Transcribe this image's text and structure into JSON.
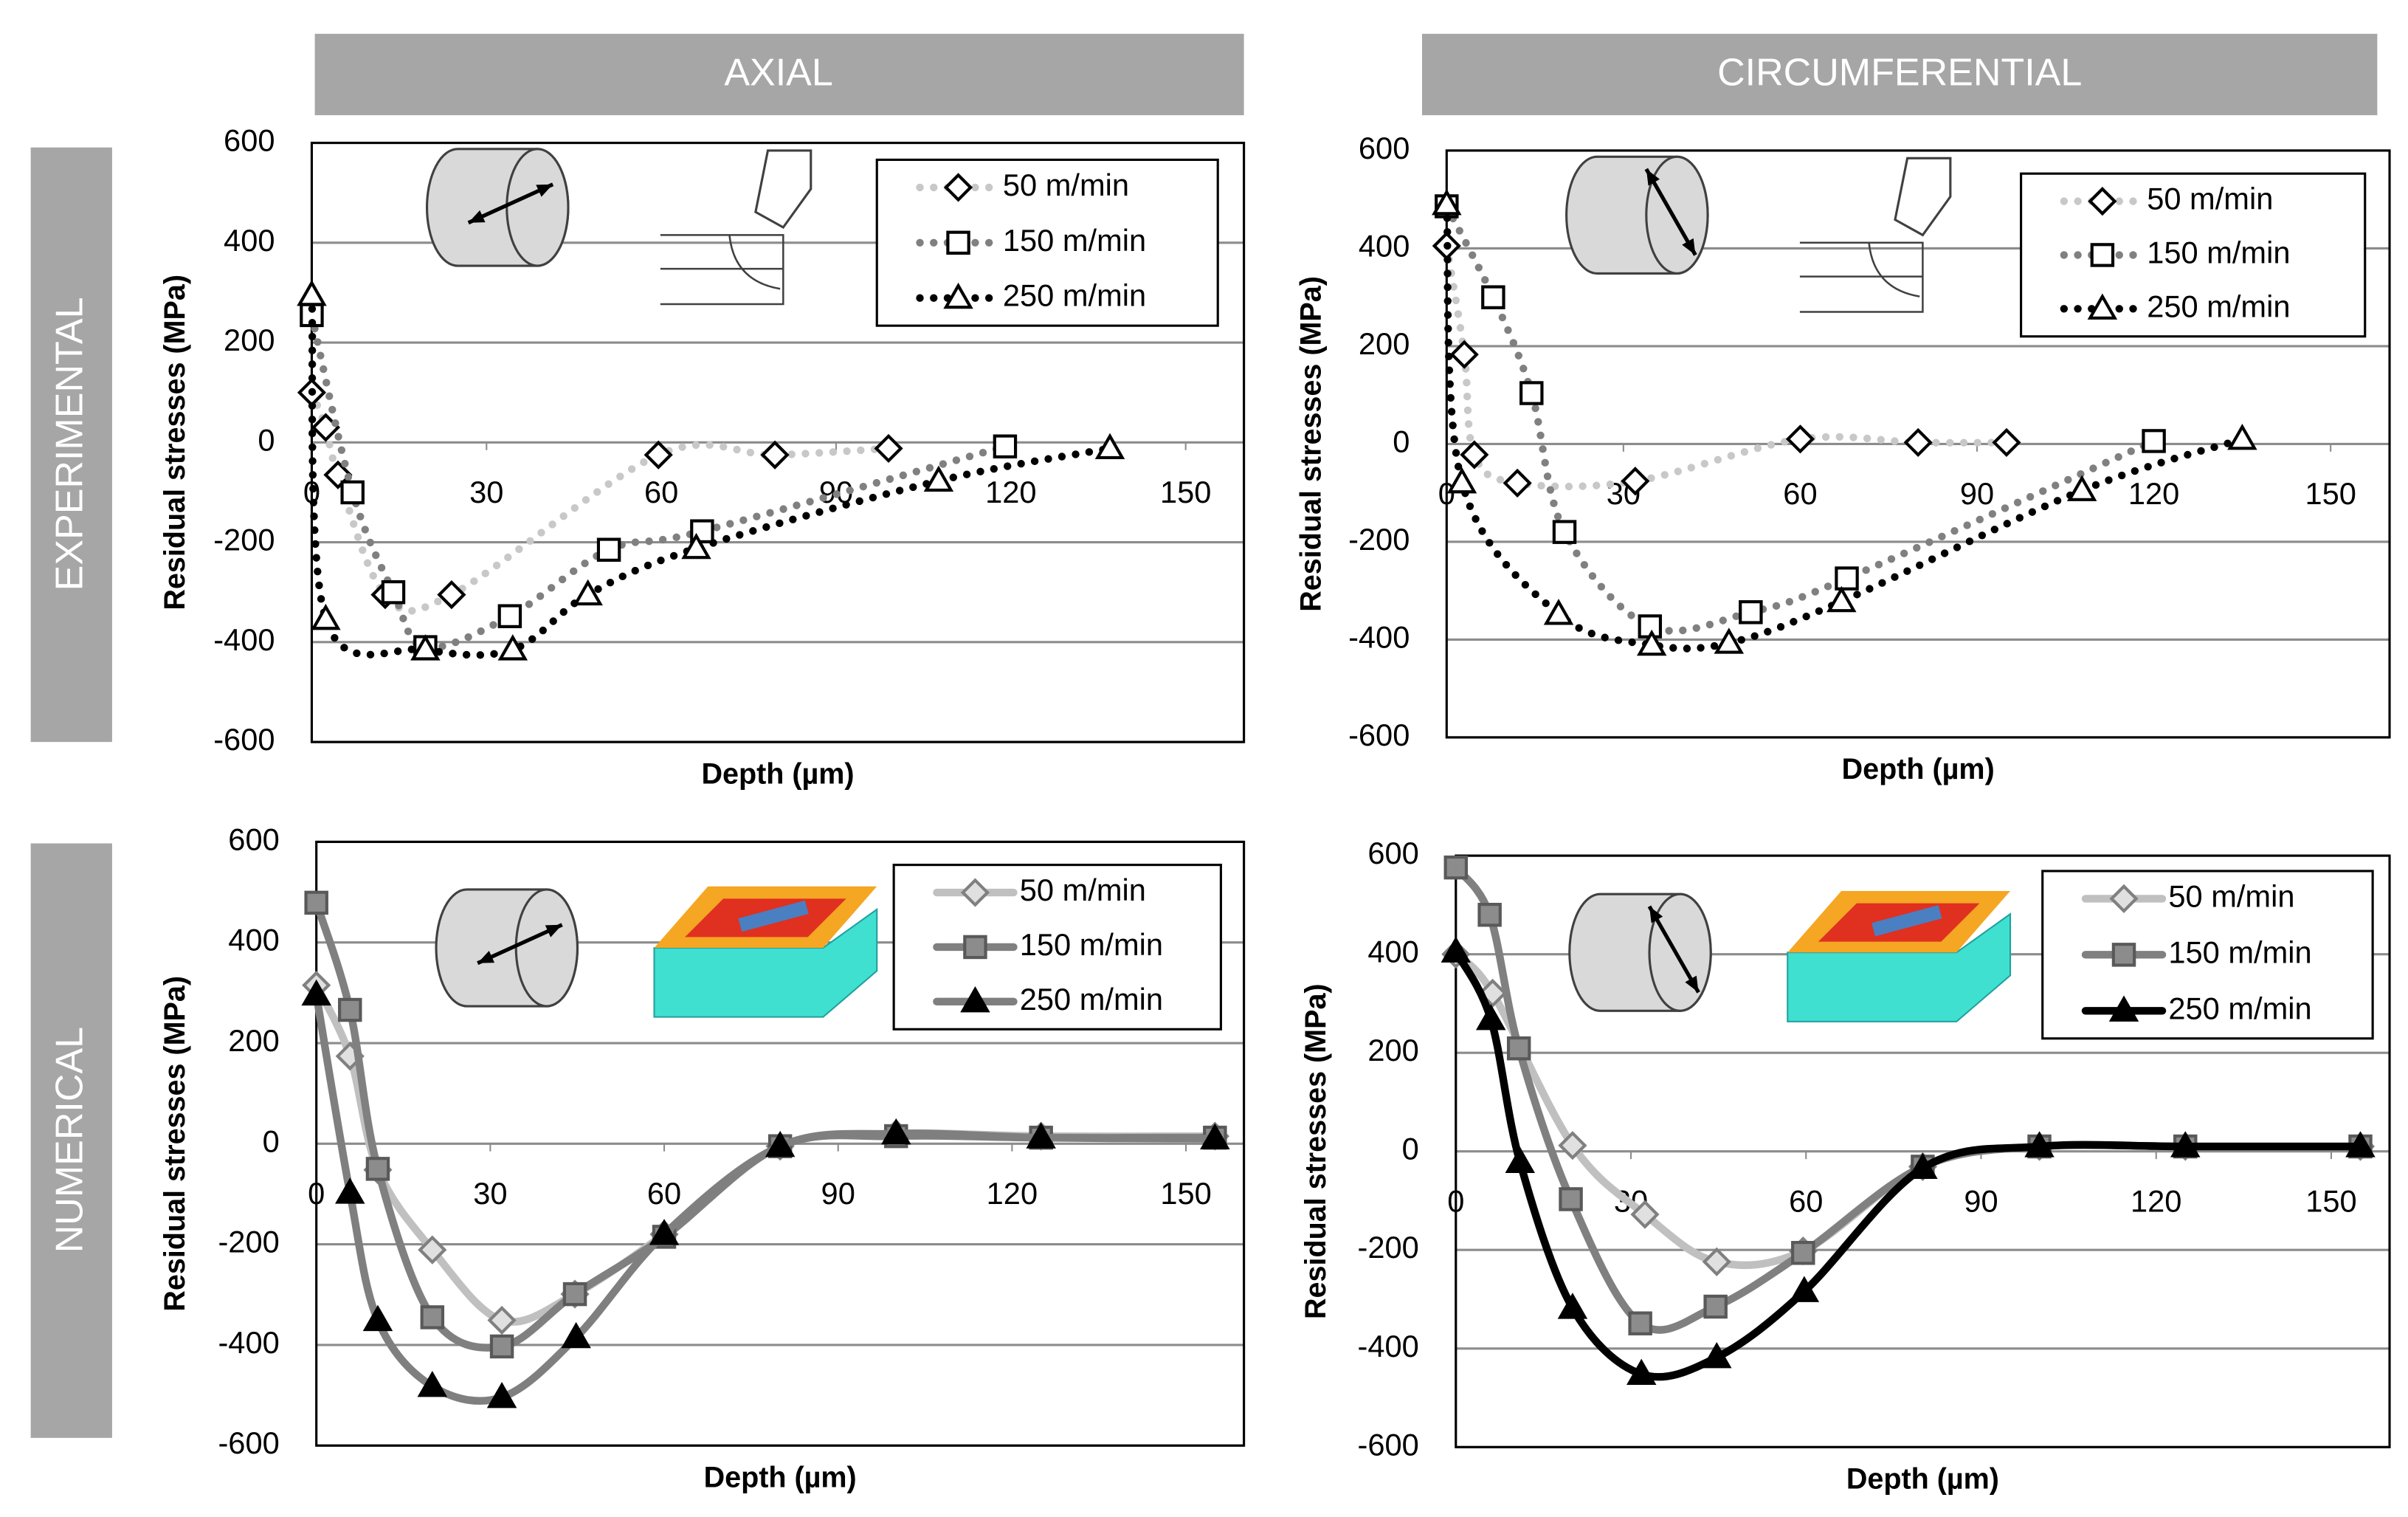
{
  "column_headers": [
    "AXIAL",
    "CIRCUMFERENTIAL"
  ],
  "row_headers": [
    "EXPERIMENTAL",
    "NUMERICAL"
  ],
  "chart_data": [
    {
      "type": "line",
      "xlabel": "Depth (µm)",
      "ylabel": "Residual stresses (MPa)",
      "xlim": [
        0,
        160
      ],
      "ylim": [
        -600,
        600
      ],
      "xticks": [
        0,
        30,
        60,
        90,
        120,
        150
      ],
      "yticks": [
        -600,
        -400,
        -200,
        0,
        200,
        400,
        600
      ],
      "grid": true,
      "line_style": "dotted",
      "series": [
        {
          "name": "50 m/min",
          "color": "#c8c8c8",
          "marker": "diamond",
          "x": [
            0,
            2.4,
            4.5,
            12.6,
            24,
            59.5,
            79.5,
            99
          ],
          "values": [
            100,
            30,
            -65,
            -305,
            -305,
            -25,
            -25,
            -12
          ]
        },
        {
          "name": "150 m/min",
          "color": "#808080",
          "marker": "square",
          "x": [
            0,
            7,
            14,
            19.5,
            34,
            51,
            67,
            119
          ],
          "values": [
            255,
            -100,
            -300,
            -410,
            -348,
            -215,
            -178,
            -8
          ]
        },
        {
          "name": "250 m/min",
          "color": "#000000",
          "marker": "triangle",
          "x": [
            0,
            2.4,
            19.5,
            34.5,
            47.4,
            66,
            107.6,
            137
          ],
          "values": [
            295,
            -354,
            -415,
            -415,
            -305,
            -212,
            -77,
            -12
          ]
        }
      ]
    },
    {
      "type": "line",
      "xlabel": "Depth (µm)",
      "ylabel": "Residual stresses (MPa)",
      "xlim": [
        0,
        160
      ],
      "ylim": [
        -600,
        600
      ],
      "xticks": [
        0,
        30,
        60,
        90,
        120,
        150
      ],
      "yticks": [
        -600,
        -400,
        -200,
        0,
        200,
        400,
        600
      ],
      "grid": true,
      "line_style": "dotted",
      "series": [
        {
          "name": "50 m/min",
          "color": "#c8c8c8",
          "marker": "diamond",
          "x": [
            0,
            3,
            4.7,
            12,
            32,
            60,
            80,
            95
          ],
          "values": [
            405,
            183,
            -22,
            -80,
            -76,
            10,
            3,
            3
          ]
        },
        {
          "name": "150 m/min",
          "color": "#808080",
          "marker": "square",
          "x": [
            0,
            7.9,
            14.4,
            20,
            34.5,
            51.6,
            67.9,
            120
          ],
          "values": [
            486,
            300,
            104,
            -180,
            -373,
            -344,
            -275,
            6
          ]
        },
        {
          "name": "250 m/min",
          "color": "#000000",
          "marker": "triangle",
          "x": [
            0,
            2.6,
            19,
            34.8,
            47.9,
            67,
            107.8,
            135
          ],
          "values": [
            490,
            -79,
            -348,
            -411,
            -407,
            -322,
            -95,
            10
          ]
        }
      ]
    },
    {
      "type": "line",
      "xlabel": "Depth (µm)",
      "ylabel": "Residual stresses (MPa)",
      "xlim": [
        0,
        160
      ],
      "ylim": [
        -600,
        600
      ],
      "xticks": [
        0,
        30,
        60,
        90,
        120,
        150
      ],
      "yticks": [
        -600,
        -400,
        -200,
        0,
        200,
        400,
        600
      ],
      "grid": true,
      "line_style": "solid",
      "series": [
        {
          "name": "50 m/min",
          "color": "#c0c0c0",
          "marker": "diamond",
          "x": [
            0,
            5.8,
            10.6,
            20,
            32,
            44.6,
            60,
            80,
            100,
            125,
            155
          ],
          "values": [
            315,
            174,
            -52,
            -211,
            -351,
            -299,
            -180,
            -5,
            20,
            15,
            15
          ]
        },
        {
          "name": "150 m/min",
          "color": "#808080",
          "marker": "square",
          "x": [
            0,
            5.8,
            10.6,
            20,
            32,
            44.6,
            60,
            80,
            100,
            125,
            155
          ],
          "values": [
            479,
            266,
            -50,
            -345,
            -403,
            -299,
            -185,
            -5,
            15,
            12,
            12
          ]
        },
        {
          "name": "250 m/min",
          "color": "#7f7f7f",
          "marker": "triangle",
          "x": [
            0,
            5.8,
            10.6,
            20,
            32,
            44.8,
            60,
            80,
            100,
            125,
            155
          ],
          "values": [
            296,
            -98,
            -351,
            -482,
            -504,
            -385,
            -180,
            -5,
            20,
            12,
            10
          ]
        }
      ]
    },
    {
      "type": "line",
      "xlabel": "Depth (µm)",
      "ylabel": "Residual stresses (MPa)",
      "xlim": [
        0,
        160
      ],
      "ylim": [
        -600,
        600
      ],
      "xticks": [
        0,
        30,
        60,
        90,
        120,
        150
      ],
      "yticks": [
        -600,
        -400,
        -200,
        0,
        200,
        400,
        600
      ],
      "grid": true,
      "line_style": "solid",
      "series": [
        {
          "name": "50 m/min",
          "color": "#c0c0c0",
          "marker": "diamond",
          "x": [
            0,
            6.3,
            20,
            32.4,
            44.7,
            59.5,
            80,
            100,
            125,
            155
          ],
          "values": [
            400,
            321,
            12,
            -128,
            -224,
            -202,
            -31,
            10,
            10,
            10
          ]
        },
        {
          "name": "150 m/min",
          "color": "#808080",
          "marker": "square",
          "x": [
            0,
            5.8,
            10.8,
            19.7,
            31.6,
            44.5,
            59.5,
            80,
            100,
            125,
            155
          ],
          "values": [
            576,
            480,
            209,
            -97,
            -349,
            -315,
            -206,
            -31,
            10,
            10,
            10
          ]
        },
        {
          "name": "250 m/min",
          "color": "#000000",
          "marker": "triangle",
          "x": [
            0,
            6,
            11,
            20,
            31.8,
            44.7,
            59.7,
            80,
            100,
            125,
            155
          ],
          "values": [
            405,
            268,
            -22,
            -318,
            -452,
            -418,
            -284,
            -34,
            10,
            10,
            10
          ]
        }
      ]
    }
  ]
}
